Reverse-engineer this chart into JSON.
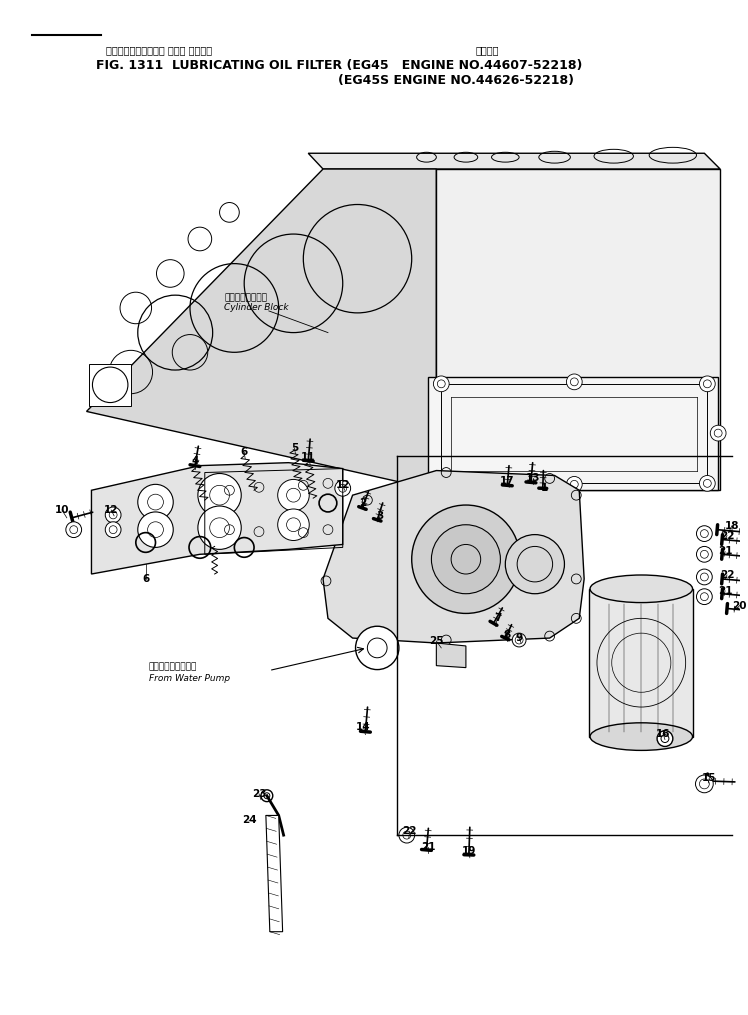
{
  "title_jp": "ルーブリケーティング オイル フィルタ",
  "title_app": "適用号機",
  "title_line1": "FIG. 1311  LUBRICATING OIL FILTER (EG45   ENGINE NO.44607-52218)",
  "title_line2": "(EG45S ENGINE NO.44626-52218)",
  "bg_color": "#ffffff",
  "line_color": "#000000",
  "fig_width": 7.48,
  "fig_height": 10.15,
  "dpi": 100
}
